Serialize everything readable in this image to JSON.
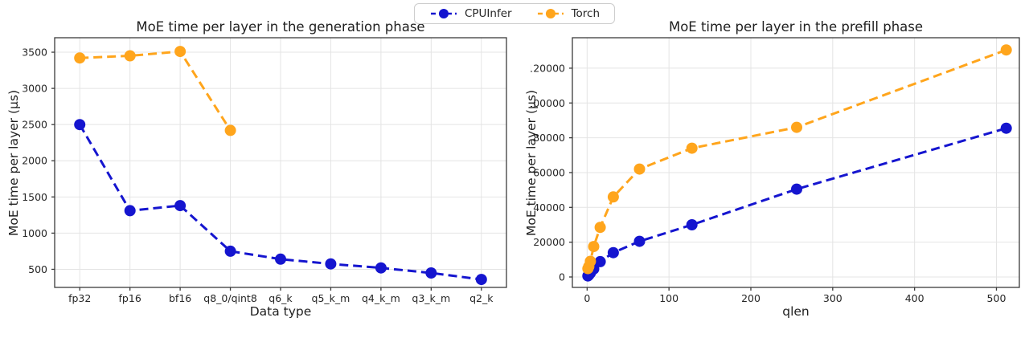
{
  "legend": {
    "items": [
      {
        "label": "CPUInfer",
        "color": "#1515cf"
      },
      {
        "label": "Torch",
        "color": "#ffa51c"
      }
    ]
  },
  "style": {
    "axis_color": "#3b3b3b",
    "grid_color": "#e4e4e4",
    "text_color": "#262626",
    "line_style": "dashed"
  },
  "chart_data": [
    {
      "type": "line",
      "title": "MoE time per layer in the generation phase",
      "xlabel": "Data type",
      "ylabel": "MoE time per layer (μs)",
      "categories": [
        "fp32",
        "fp16",
        "bf16",
        "q8_0/qint8",
        "q6_k",
        "q5_k_m",
        "q4_k_m",
        "q3_k_m",
        "q2_k"
      ],
      "yticks": [
        500,
        1000,
        1500,
        2000,
        2500,
        3000,
        3500
      ],
      "ylim": [
        250,
        3700
      ],
      "grid": true,
      "legend_position": "top-center-figure",
      "series": [
        {
          "name": "CPUInfer",
          "color": "#1515cf",
          "values": [
            2500,
            1310,
            1380,
            750,
            640,
            575,
            520,
            450,
            360
          ]
        },
        {
          "name": "Torch",
          "color": "#ffa51c",
          "values": [
            3420,
            3450,
            3510,
            2420
          ]
        }
      ]
    },
    {
      "type": "line",
      "title": "MoE time per layer in the prefill phase",
      "xlabel": "qlen",
      "ylabel": "MoE time per layer (μs)",
      "xticks": [
        0,
        100,
        200,
        300,
        400,
        500
      ],
      "xlim": [
        -18,
        528
      ],
      "yticks": [
        0,
        20000,
        40000,
        60000,
        80000,
        100000,
        120000
      ],
      "ylim": [
        -6000,
        137500
      ],
      "grid": true,
      "series": [
        {
          "name": "CPUInfer",
          "color": "#1515cf",
          "x": [
            1,
            2,
            4,
            8,
            16,
            32,
            64,
            128,
            256,
            512
          ],
          "values": [
            600,
            1100,
            2300,
            4600,
            8800,
            14000,
            20500,
            30000,
            50500,
            85500
          ]
        },
        {
          "name": "Torch",
          "color": "#ffa51c",
          "x": [
            1,
            2,
            4,
            8,
            16,
            32,
            64,
            128,
            256,
            512
          ],
          "values": [
            4800,
            6000,
            9000,
            17500,
            28500,
            46000,
            62000,
            74000,
            86000,
            130500
          ]
        }
      ]
    }
  ]
}
